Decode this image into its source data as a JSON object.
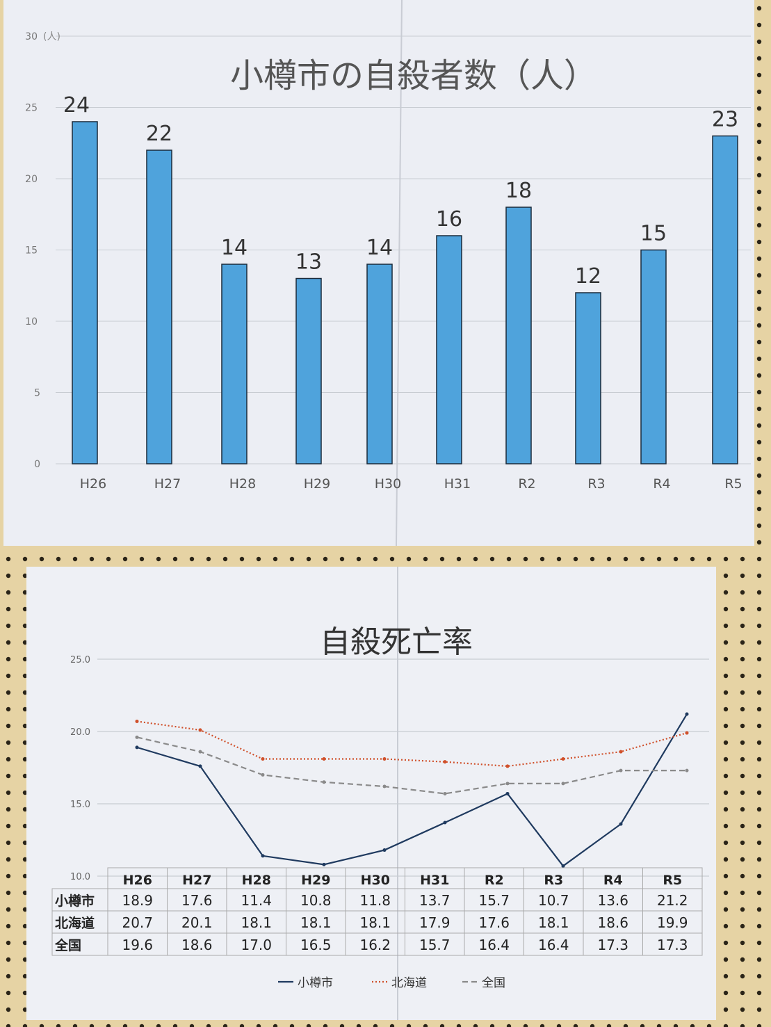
{
  "chart_data": [
    {
      "type": "bar",
      "title": "小樽市の自殺者数（人）",
      "ylabel": "(人)",
      "ylim": [
        0,
        30
      ],
      "yticks": [
        0,
        5,
        10,
        15,
        20,
        25,
        30
      ],
      "grid": true,
      "categories": [
        "H26",
        "H27",
        "H28",
        "H29",
        "H30",
        "H31",
        "R2",
        "R3",
        "R4",
        "R5"
      ],
      "values": [
        24,
        22,
        14,
        13,
        14,
        16,
        18,
        12,
        15,
        23
      ],
      "bar_color": "#4fa3dc"
    },
    {
      "type": "line",
      "title": "自殺死亡率",
      "ylim": [
        10,
        25
      ],
      "yticks": [
        "10.0",
        "15.0",
        "20.0",
        "25.0"
      ],
      "grid": true,
      "legend_position": "bottom",
      "categories": [
        "H26",
        "H27",
        "H28",
        "H29",
        "H30",
        "H31",
        "R2",
        "R3",
        "R4",
        "R5"
      ],
      "series": [
        {
          "name": "小樽市",
          "values": [
            18.9,
            17.6,
            11.4,
            10.8,
            11.8,
            13.7,
            15.7,
            10.7,
            13.6,
            21.2
          ],
          "color": "#1f3a5f",
          "style": "solid"
        },
        {
          "name": "北海道",
          "values": [
            20.7,
            20.1,
            18.1,
            18.1,
            18.1,
            17.9,
            17.6,
            18.1,
            18.6,
            19.9
          ],
          "color": "#d0502a",
          "style": "dotted"
        },
        {
          "name": "全国",
          "values": [
            19.6,
            18.6,
            17.0,
            16.5,
            16.2,
            15.7,
            16.4,
            16.4,
            17.3,
            17.3
          ],
          "color": "#8a8a8a",
          "style": "dashed"
        }
      ],
      "table": {
        "headers": [
          "H26",
          "H27",
          "H28",
          "H29",
          "H30",
          "H31",
          "R2",
          "R3",
          "R4",
          "R5"
        ],
        "rows": [
          {
            "label": "小樽市",
            "cells": [
              "18.9",
              "17.6",
              "11.4",
              "10.8",
              "11.8",
              "13.7",
              "15.7",
              "10.7",
              "13.6",
              "21.2"
            ]
          },
          {
            "label": "北海道",
            "cells": [
              "20.7",
              "20.1",
              "18.1",
              "18.1",
              "18.1",
              "17.9",
              "17.6",
              "18.1",
              "18.6",
              "19.9"
            ]
          },
          {
            "label": "全国",
            "cells": [
              "19.6",
              "18.6",
              "17.0",
              "16.5",
              "16.2",
              "15.7",
              "16.4",
              "16.4",
              "17.3",
              "17.3"
            ]
          }
        ]
      }
    }
  ]
}
